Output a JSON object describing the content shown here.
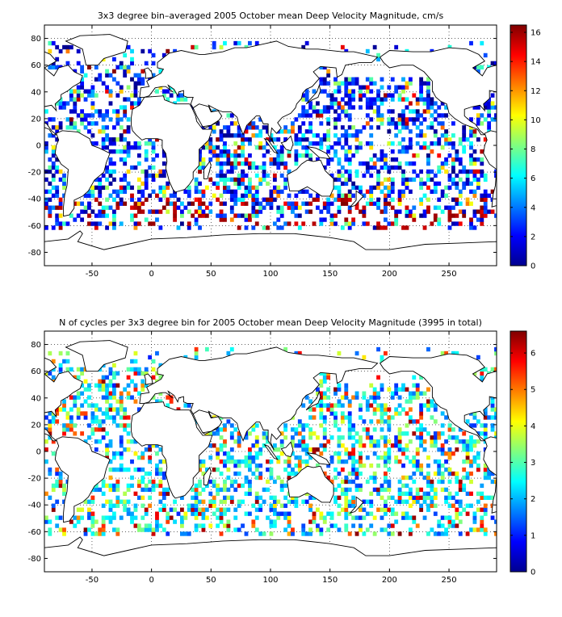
{
  "chart_data": [
    {
      "type": "heatmap",
      "title": "3x3 degree bin–averaged 2005 October mean Deep Velocity Magnitude, cm/s",
      "xlim": [
        -90,
        290
      ],
      "ylim": [
        -90,
        90
      ],
      "xticks": [
        -50,
        0,
        50,
        100,
        150,
        200,
        250
      ],
      "yticks": [
        -80,
        -60,
        -40,
        -20,
        0,
        20,
        40,
        60,
        80
      ],
      "grid": true,
      "bin_size_deg": 3,
      "colorbar": {
        "min": 0,
        "max": 16.5,
        "ticks": [
          0,
          2,
          4,
          6,
          8,
          10,
          12,
          14,
          16
        ]
      }
    },
    {
      "type": "heatmap",
      "title": "N of cycles per 3x3 degree bin for 2005 October mean Deep Velocity Magnitude (3995 in total)",
      "xlim": [
        -90,
        290
      ],
      "ylim": [
        -90,
        90
      ],
      "xticks": [
        -50,
        0,
        50,
        100,
        150,
        200,
        250
      ],
      "yticks": [
        -80,
        -60,
        -40,
        -20,
        0,
        20,
        40,
        60,
        80
      ],
      "grid": true,
      "bin_size_deg": 3,
      "colorbar": {
        "min": 0,
        "max": 6.6,
        "ticks": [
          0,
          1,
          2,
          3,
          4,
          5,
          6
        ]
      }
    }
  ]
}
